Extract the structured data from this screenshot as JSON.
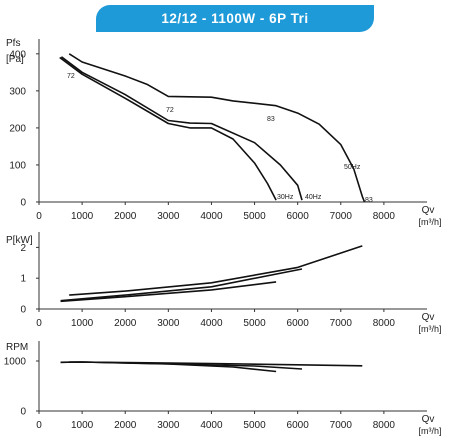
{
  "title": "12/12 - 1100W - 6P Tri",
  "chart_data": [
    {
      "type": "line",
      "ylabel": "Pfs",
      "yunit": "[Pa]",
      "xlabel": "Qv",
      "xunit": "[m³/h]",
      "xlim": [
        0,
        9000
      ],
      "ylim": [
        0,
        440
      ],
      "xticks": [
        0,
        1000,
        2000,
        3000,
        4000,
        5000,
        6000,
        7000,
        8000
      ],
      "yticks": [
        0,
        100,
        200,
        300,
        400
      ],
      "grid": false,
      "series": [
        {
          "name": "30Hz",
          "points": [
            [
              480,
              390
            ],
            [
              1000,
              345
            ],
            [
              2000,
              280
            ],
            [
              3000,
              212
            ],
            [
              3500,
              200
            ],
            [
              4000,
              200
            ],
            [
              4500,
              170
            ],
            [
              5000,
              105
            ],
            [
              5300,
              50
            ],
            [
              5500,
              5
            ]
          ]
        },
        {
          "name": "40Hz",
          "points": [
            [
              520,
              392
            ],
            [
              1000,
              350
            ],
            [
              2000,
              290
            ],
            [
              3000,
              220
            ],
            [
              3500,
              213
            ],
            [
              4000,
              212
            ],
            [
              5000,
              160
            ],
            [
              5600,
              100
            ],
            [
              6000,
              45
            ],
            [
              6100,
              5
            ]
          ]
        },
        {
          "name": "50Hz",
          "points": [
            [
              700,
              400
            ],
            [
              1000,
              378
            ],
            [
              2000,
              340
            ],
            [
              2500,
              318
            ],
            [
              3000,
              285
            ],
            [
              4000,
              283
            ],
            [
              4500,
              273
            ],
            [
              5500,
              260
            ],
            [
              6000,
              240
            ],
            [
              6500,
              210
            ],
            [
              7000,
              155
            ],
            [
              7300,
              90
            ],
            [
              7500,
              15
            ],
            [
              7550,
              0
            ]
          ]
        }
      ],
      "annotations": [
        "72",
        "72",
        "83",
        "30Hz",
        "40Hz",
        "50Hz",
        "83"
      ]
    },
    {
      "type": "line",
      "ylabel": "P[kW]",
      "xlabel": "Qv",
      "xunit": "[m³/h]",
      "xlim": [
        0,
        9000
      ],
      "ylim": [
        0,
        2.5
      ],
      "xticks": [
        0,
        1000,
        2000,
        3000,
        4000,
        5000,
        6000,
        7000,
        8000
      ],
      "yticks": [
        0,
        1,
        2
      ],
      "grid": false,
      "series": [
        {
          "name": "30Hz",
          "points": [
            [
              500,
              0.25
            ],
            [
              2000,
              0.4
            ],
            [
              4000,
              0.62
            ],
            [
              5500,
              0.88
            ]
          ]
        },
        {
          "name": "40Hz",
          "points": [
            [
              500,
              0.27
            ],
            [
              2000,
              0.45
            ],
            [
              4000,
              0.72
            ],
            [
              6100,
              1.3
            ]
          ]
        },
        {
          "name": "50Hz",
          "points": [
            [
              700,
              0.45
            ],
            [
              2000,
              0.58
            ],
            [
              4000,
              0.85
            ],
            [
              6000,
              1.35
            ],
            [
              7500,
              2.05
            ]
          ]
        }
      ]
    },
    {
      "type": "line",
      "ylabel": "RPM",
      "xlabel": "Qv",
      "xunit": "[m³/h]",
      "xlim": [
        0,
        9000
      ],
      "ylim": [
        0,
        1400
      ],
      "xticks": [
        0,
        1000,
        2000,
        3000,
        4000,
        5000,
        6000,
        7000,
        8000
      ],
      "yticks": [
        0,
        1000
      ],
      "grid": false,
      "series": [
        {
          "name": "30Hz",
          "points": [
            [
              500,
              975
            ],
            [
              1000,
              980
            ],
            [
              3000,
              940
            ],
            [
              4500,
              880
            ],
            [
              5500,
              790
            ]
          ]
        },
        {
          "name": "40Hz",
          "points": [
            [
              500,
              975
            ],
            [
              1000,
              980
            ],
            [
              3000,
              945
            ],
            [
              5000,
              900
            ],
            [
              6100,
              840
            ]
          ]
        },
        {
          "name": "50Hz",
          "points": [
            [
              700,
              980
            ],
            [
              2000,
              970
            ],
            [
              4000,
              950
            ],
            [
              6000,
              925
            ],
            [
              7500,
              905
            ]
          ]
        }
      ]
    }
  ]
}
